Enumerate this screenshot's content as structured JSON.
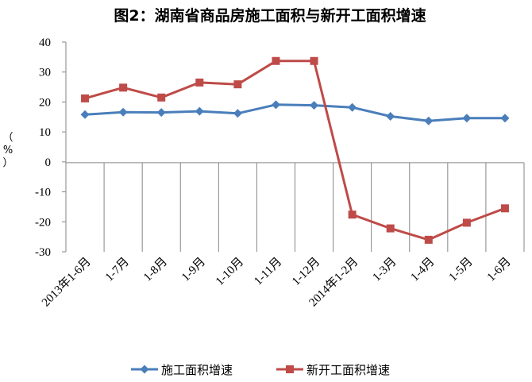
{
  "chart_data": {
    "type": "line",
    "title": "图2：湖南省商品房施工面积与新开工面积增速",
    "ylabel": "（%）",
    "categories": [
      "2013年1-6月",
      "1-7月",
      "1-8月",
      "1-9月",
      "1-10月",
      "1-11月",
      "1-12月",
      "2014年1-2月",
      "1-3月",
      "1-4月",
      "1-5月",
      "1-6月"
    ],
    "ylim": [
      -30,
      40
    ],
    "yticks": [
      40,
      30,
      20,
      10,
      0,
      -10,
      -20,
      -30
    ],
    "grid": false,
    "legend_position": "bottom",
    "series": [
      {
        "name": "施工面积增速",
        "color": "#4a7ebb",
        "marker": "diamond",
        "values": [
          15.8,
          16.6,
          16.5,
          16.9,
          16.2,
          19.1,
          18.9,
          18.2,
          15.2,
          13.7,
          14.6,
          14.6
        ]
      },
      {
        "name": "新开工面积增速",
        "color": "#be4b48",
        "marker": "square",
        "values": [
          21.2,
          24.8,
          21.5,
          26.5,
          25.9,
          33.7,
          33.7,
          -17.6,
          -22.2,
          -26.0,
          -20.3,
          -15.5
        ]
      }
    ]
  }
}
